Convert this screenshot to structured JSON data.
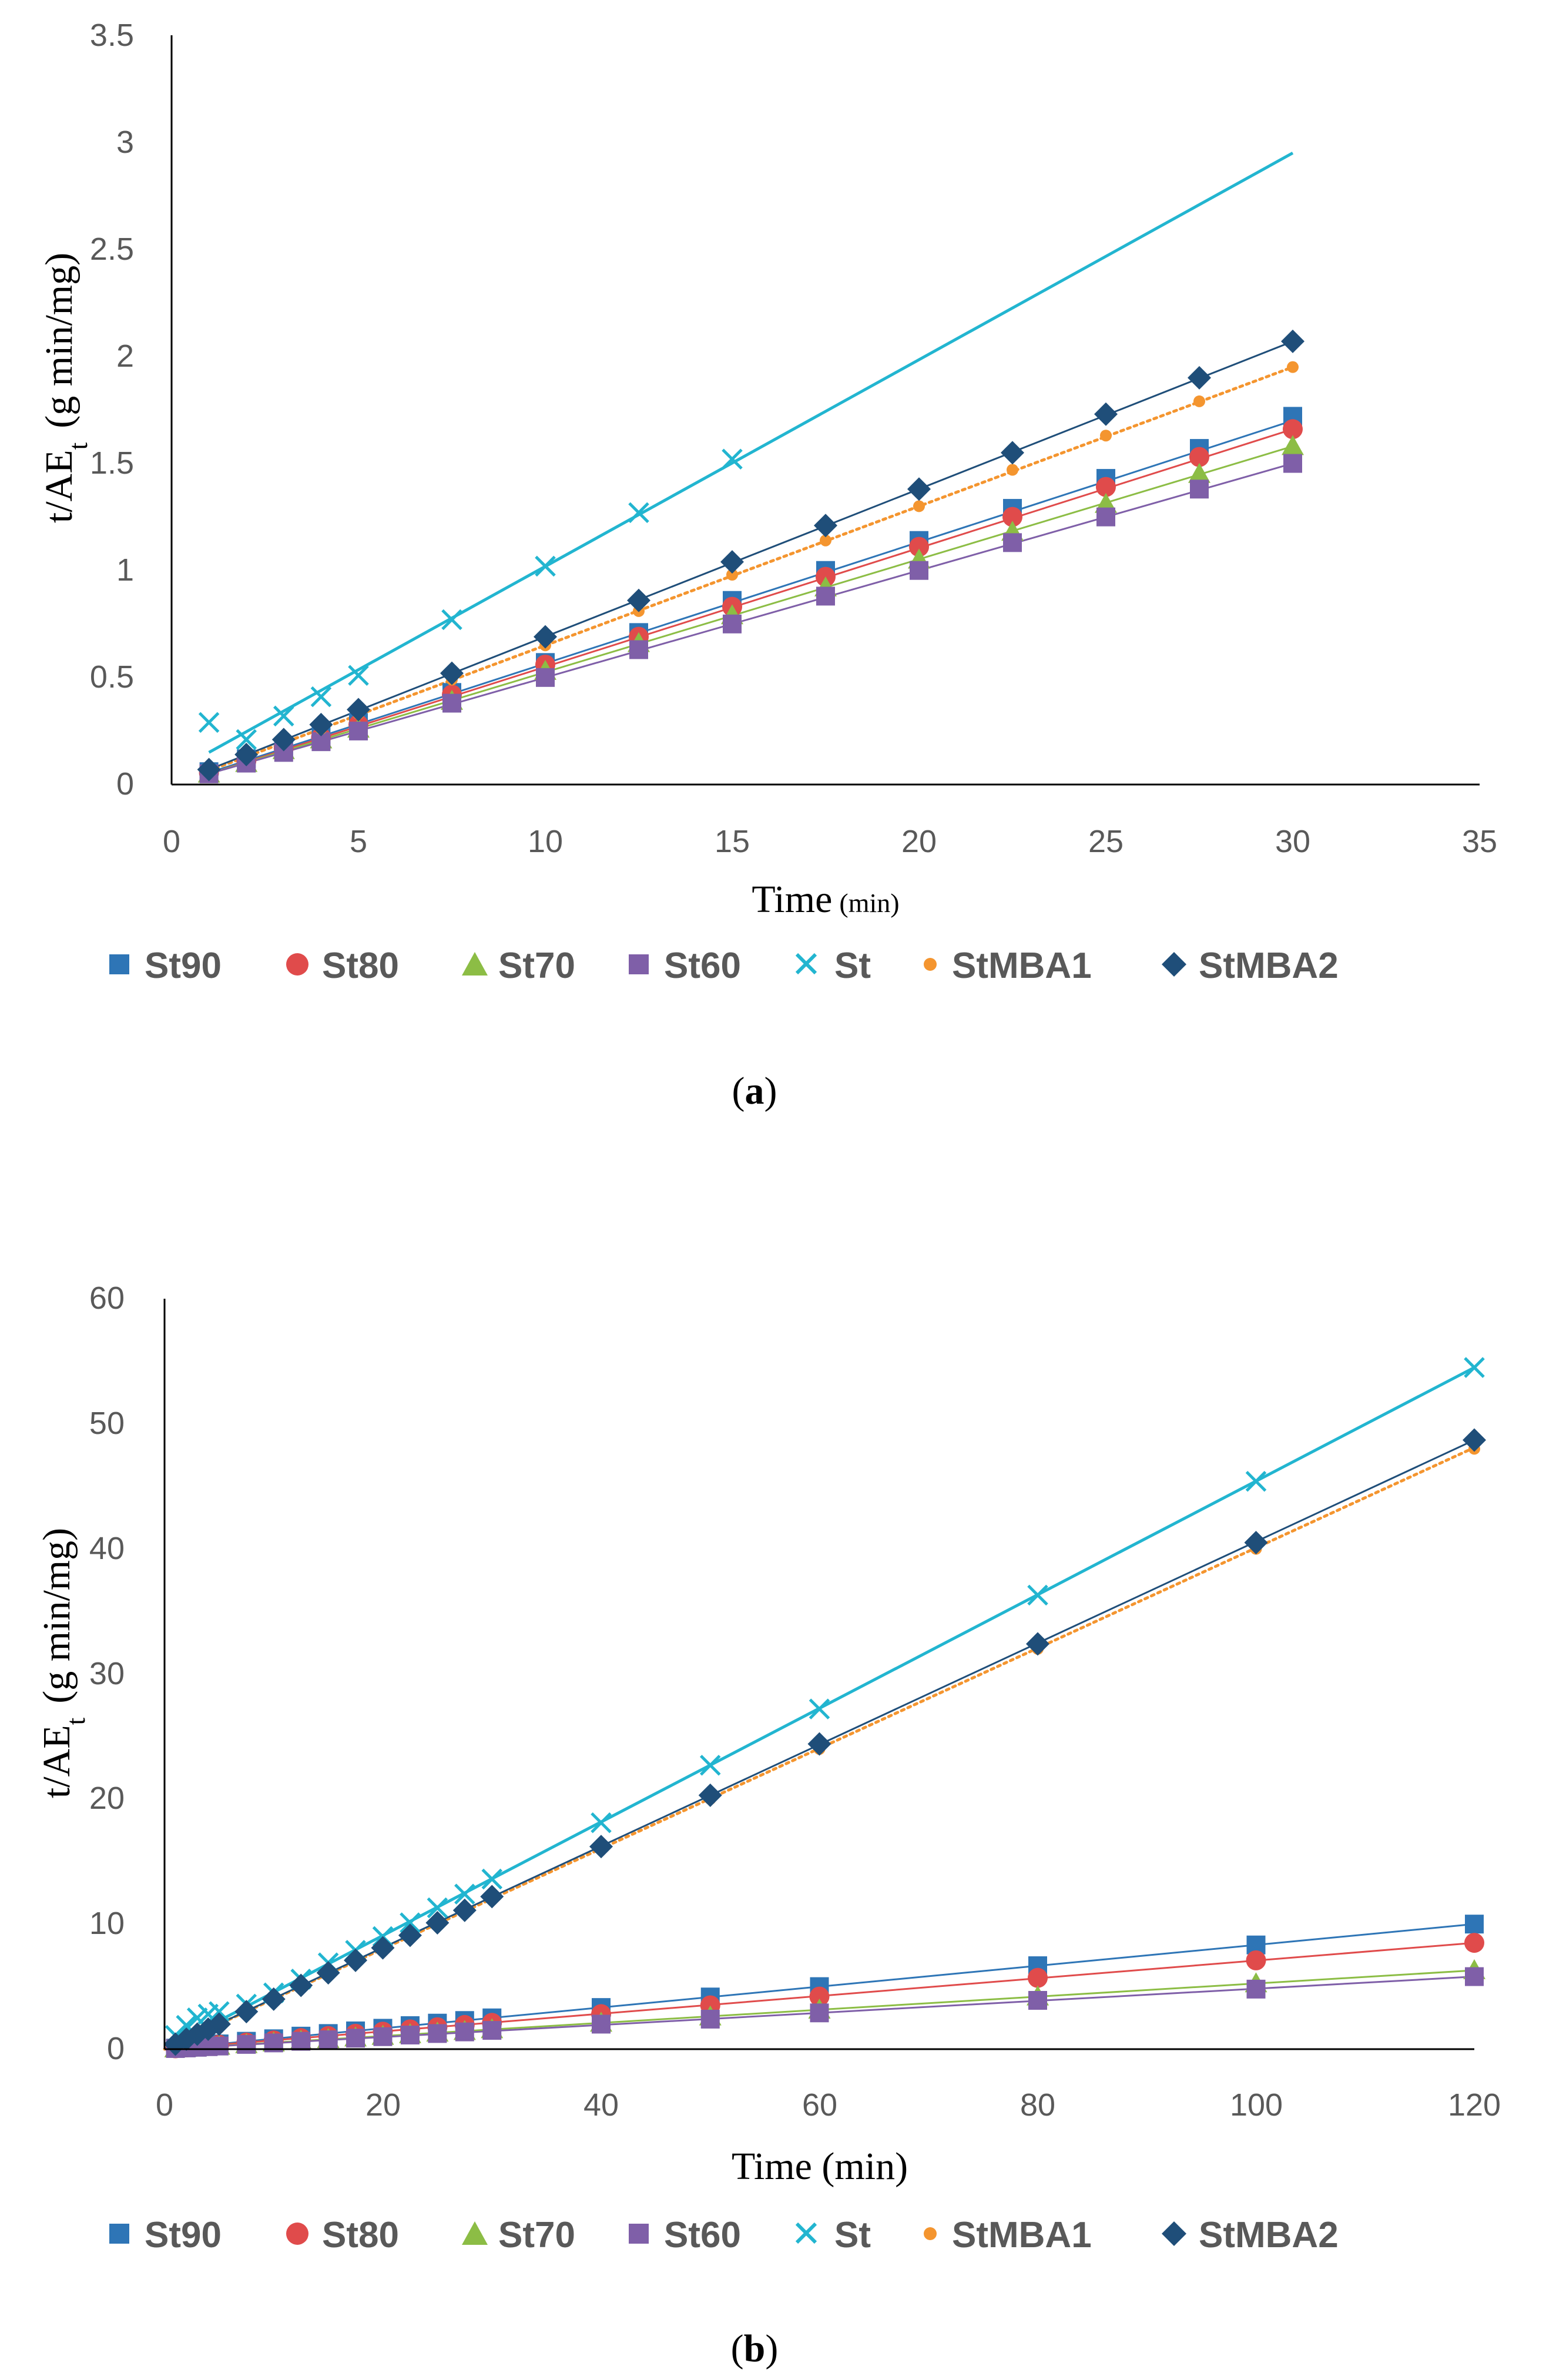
{
  "colors": {
    "St90": "#2e75b6",
    "St80": "#e04b4b",
    "St70": "#8cbd45",
    "St60": "#7f5fa8",
    "St": "#22b5d0",
    "StMBA1": "#f4952f",
    "StMBA2": "#1f4e79",
    "axis": "#000000",
    "tick_text": "#595959"
  },
  "legend": {
    "St90": "St90",
    "St80": "St80",
    "St70": "St70",
    "St60": "St60",
    "St": "St",
    "StMBA1": "StMBA1",
    "StMBA2": "StMBA2"
  },
  "chart_data": [
    {
      "type": "scatter",
      "panel_label": "(a)",
      "panel_label_letter": "a",
      "xlabel_main": "Time",
      "xlabel_unit": "(min)",
      "ylabel_main": "t/AE",
      "ylabel_sub": "t",
      "ylabel_unit": "(g min/mg)",
      "xlim": [
        0,
        35
      ],
      "ylim": [
        0,
        3.5
      ],
      "xticks": [
        "0",
        "5",
        "10",
        "15",
        "20",
        "25",
        "30",
        "35"
      ],
      "yticks": [
        "0",
        "0.5",
        "1",
        "1.5",
        "2",
        "2.5",
        "3",
        "3.5"
      ],
      "series": [
        {
          "name": "St90",
          "marker": "square",
          "x": [
            1,
            2,
            3,
            4,
            5,
            7.5,
            10,
            12.5,
            15,
            17.5,
            20,
            22.5,
            25,
            27.5,
            30
          ],
          "values": [
            0.06,
            0.12,
            0.17,
            0.23,
            0.29,
            0.43,
            0.57,
            0.71,
            0.86,
            1.0,
            1.14,
            1.29,
            1.43,
            1.57,
            1.72
          ],
          "fit": [
            [
              1,
              0.055
            ],
            [
              30,
              1.7
            ]
          ],
          "dotted": false
        },
        {
          "name": "St80",
          "marker": "circle",
          "x": [
            1,
            2,
            3,
            4,
            5,
            7.5,
            10,
            12.5,
            15,
            17.5,
            20,
            22.5,
            25,
            27.5,
            30
          ],
          "values": [
            0.055,
            0.11,
            0.17,
            0.22,
            0.28,
            0.42,
            0.56,
            0.69,
            0.83,
            0.97,
            1.11,
            1.25,
            1.39,
            1.53,
            1.66
          ],
          "fit": [
            [
              1,
              0.05
            ],
            [
              30,
              1.66
            ]
          ],
          "dotted": false
        },
        {
          "name": "St70",
          "marker": "triangle",
          "x": [
            1,
            2,
            3,
            4,
            5,
            7.5,
            10,
            12.5,
            15,
            17.5,
            20,
            22.5,
            25,
            27.5,
            30
          ],
          "values": [
            0.05,
            0.1,
            0.16,
            0.21,
            0.26,
            0.39,
            0.53,
            0.66,
            0.79,
            0.92,
            1.05,
            1.18,
            1.31,
            1.45,
            1.58
          ],
          "fit": [
            [
              1,
              0.05
            ],
            [
              30,
              1.58
            ]
          ],
          "dotted": false
        },
        {
          "name": "St60",
          "marker": "square",
          "x": [
            1,
            2,
            3,
            4,
            5,
            7.5,
            10,
            12.5,
            15,
            17.5,
            20,
            22.5,
            25,
            27.5,
            30
          ],
          "values": [
            0.05,
            0.1,
            0.15,
            0.2,
            0.25,
            0.38,
            0.5,
            0.63,
            0.75,
            0.88,
            1.0,
            1.13,
            1.25,
            1.38,
            1.5
          ],
          "fit": [
            [
              1,
              0.05
            ],
            [
              30,
              1.5
            ]
          ],
          "dotted": false
        },
        {
          "name": "St",
          "marker": "x",
          "x": [
            1,
            2,
            3,
            4,
            5,
            7.5,
            10,
            12.5,
            15
          ],
          "values": [
            0.29,
            0.21,
            0.32,
            0.41,
            0.51,
            0.77,
            1.02,
            1.27,
            1.52
          ],
          "fit": [
            [
              1,
              0.15
            ],
            [
              30,
              2.95
            ]
          ],
          "dotted": false
        },
        {
          "name": "StMBA1",
          "marker": "circle-small",
          "x": [
            1,
            2,
            3,
            4,
            5,
            7.5,
            10,
            12.5,
            15,
            17.5,
            20,
            22.5,
            25,
            27.5,
            30
          ],
          "values": [
            0.065,
            0.13,
            0.2,
            0.26,
            0.33,
            0.49,
            0.65,
            0.81,
            0.98,
            1.14,
            1.3,
            1.47,
            1.63,
            1.79,
            1.95
          ],
          "fit": [
            [
              1,
              0.065
            ],
            [
              30,
              1.95
            ]
          ],
          "dotted": true
        },
        {
          "name": "StMBA2",
          "marker": "diamond",
          "x": [
            1,
            2,
            3,
            4,
            5,
            7.5,
            10,
            12.5,
            15,
            17.5,
            20,
            22.5,
            25,
            27.5,
            30
          ],
          "values": [
            0.07,
            0.14,
            0.21,
            0.28,
            0.35,
            0.52,
            0.69,
            0.86,
            1.04,
            1.21,
            1.38,
            1.55,
            1.73,
            1.9,
            2.07
          ],
          "fit": [
            [
              1,
              0.07
            ],
            [
              30,
              2.07
            ]
          ],
          "dotted": false
        }
      ]
    },
    {
      "type": "scatter",
      "panel_label": "(b)",
      "panel_label_letter": "b",
      "xlabel_main": "Time (min)",
      "ylabel_main": "t/AE",
      "ylabel_sub": "t",
      "ylabel_unit": "(g min/mg)",
      "xlim": [
        0,
        120
      ],
      "ylim": [
        0,
        60
      ],
      "xticks": [
        "0",
        "20",
        "40",
        "60",
        "80",
        "100",
        "120"
      ],
      "yticks": [
        "0",
        "10",
        "20",
        "30",
        "40",
        "50",
        "60"
      ],
      "series": [
        {
          "name": "St90",
          "marker": "square",
          "x": [
            1,
            2,
            3,
            4,
            5,
            7.5,
            10,
            12.5,
            15,
            17.5,
            20,
            22.5,
            25,
            27.5,
            30,
            40,
            50,
            60,
            80,
            100,
            120
          ],
          "values": [
            0.08,
            0.17,
            0.25,
            0.33,
            0.42,
            0.63,
            0.83,
            1.04,
            1.25,
            1.46,
            1.67,
            1.88,
            2.08,
            2.29,
            2.5,
            3.33,
            4.17,
            5.0,
            6.67,
            8.33,
            10.0
          ],
          "fit": [
            [
              0,
              0.0
            ],
            [
              120,
              10.0
            ]
          ],
          "dotted": false
        },
        {
          "name": "St80",
          "marker": "circle",
          "x": [
            1,
            2,
            3,
            4,
            5,
            7.5,
            10,
            12.5,
            15,
            17.5,
            20,
            22.5,
            25,
            27.5,
            30,
            40,
            50,
            60,
            80,
            100,
            120
          ],
          "values": [
            0.07,
            0.14,
            0.21,
            0.28,
            0.35,
            0.53,
            0.7,
            0.88,
            1.05,
            1.23,
            1.4,
            1.58,
            1.75,
            1.93,
            2.1,
            2.8,
            3.5,
            4.2,
            5.7,
            7.1,
            8.5
          ],
          "fit": [
            [
              0,
              0.0
            ],
            [
              120,
              8.5
            ]
          ],
          "dotted": false
        },
        {
          "name": "St70",
          "marker": "triangle",
          "x": [
            1,
            2,
            3,
            4,
            5,
            7.5,
            10,
            12.5,
            15,
            17.5,
            20,
            22.5,
            25,
            27.5,
            30,
            40,
            50,
            60,
            80,
            100,
            120
          ],
          "values": [
            0.05,
            0.1,
            0.16,
            0.21,
            0.26,
            0.39,
            0.52,
            0.66,
            0.79,
            0.92,
            1.05,
            1.18,
            1.31,
            1.44,
            1.58,
            2.1,
            2.6,
            3.15,
            4.2,
            5.25,
            6.3
          ],
          "fit": [
            [
              0,
              0.0
            ],
            [
              120,
              6.3
            ]
          ],
          "dotted": false
        },
        {
          "name": "St60",
          "marker": "square",
          "x": [
            1,
            2,
            3,
            4,
            5,
            7.5,
            10,
            12.5,
            15,
            17.5,
            20,
            22.5,
            25,
            27.5,
            30,
            40,
            50,
            60,
            80,
            100,
            120
          ],
          "values": [
            0.05,
            0.1,
            0.15,
            0.2,
            0.25,
            0.38,
            0.5,
            0.63,
            0.75,
            0.88,
            1.0,
            1.13,
            1.25,
            1.38,
            1.5,
            2.0,
            2.4,
            2.9,
            3.9,
            4.8,
            5.8
          ],
          "fit": [
            [
              0,
              0.0
            ],
            [
              120,
              5.8
            ]
          ],
          "dotted": false
        },
        {
          "name": "St",
          "marker": "x",
          "x": [
            1,
            2,
            3,
            4,
            5,
            7.5,
            10,
            12.5,
            15,
            17.5,
            20,
            22.5,
            25,
            27.5,
            30,
            40,
            50,
            60,
            80,
            100,
            120
          ],
          "values": [
            1.1,
            1.9,
            2.5,
            2.8,
            3.0,
            3.6,
            4.5,
            5.6,
            6.9,
            7.9,
            9.0,
            10.1,
            11.3,
            12.4,
            13.6,
            18.1,
            22.7,
            27.2,
            36.3,
            45.4,
            54.5
          ],
          "fit": [
            [
              0,
              0.0
            ],
            [
              120,
              54.5
            ]
          ],
          "dotted": false
        },
        {
          "name": "StMBA1",
          "marker": "circle-small",
          "x": [
            1,
            2,
            3,
            4,
            5,
            7.5,
            10,
            12.5,
            15,
            17.5,
            20,
            22.5,
            25,
            27.5,
            30,
            40,
            50,
            60,
            80,
            100,
            120
          ],
          "values": [
            0.4,
            0.8,
            1.2,
            1.6,
            2.0,
            3.0,
            4.0,
            5.0,
            6.0,
            7.0,
            8.0,
            9.0,
            10.0,
            11.0,
            12.0,
            16.0,
            20.0,
            24.0,
            32.0,
            40.0,
            48.0
          ],
          "fit": [
            [
              0,
              0.0
            ],
            [
              120,
              48.1
            ]
          ],
          "dotted": true
        },
        {
          "name": "StMBA2",
          "marker": "diamond",
          "x": [
            1,
            2,
            3,
            4,
            5,
            7.5,
            10,
            12.5,
            15,
            17.5,
            20,
            22.5,
            25,
            27.5,
            30,
            40,
            50,
            60,
            80,
            100,
            120
          ],
          "values": [
            0.4,
            0.8,
            1.2,
            1.6,
            2.0,
            3.0,
            4.0,
            5.1,
            6.1,
            7.1,
            8.1,
            9.1,
            10.1,
            11.1,
            12.2,
            16.2,
            20.3,
            24.4,
            32.4,
            40.5,
            48.7
          ],
          "fit": [
            [
              0,
              0.0
            ],
            [
              120,
              48.7
            ]
          ],
          "dotted": false
        }
      ]
    }
  ]
}
